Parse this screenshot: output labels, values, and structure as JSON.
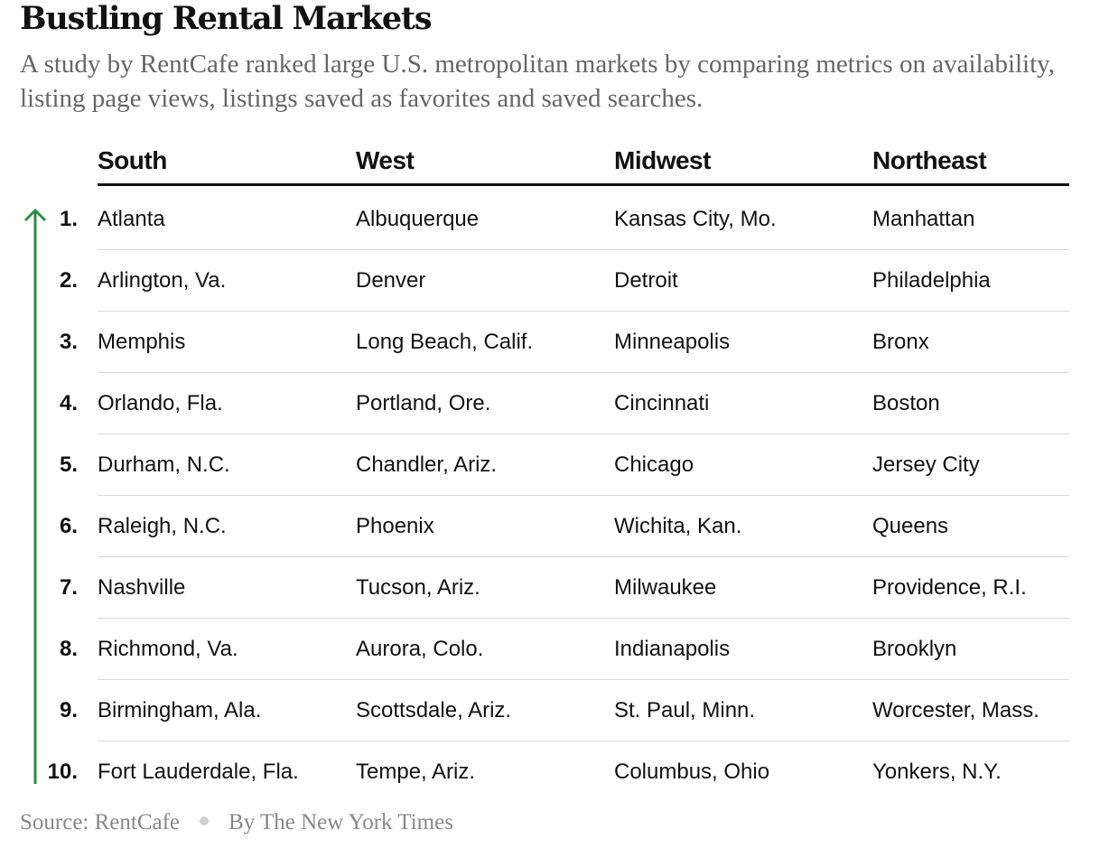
{
  "title": "Bustling Rental Markets",
  "subtitle": "A study by RentCafe ranked large U.S. metropolitan markets by comparing metrics on availability, listing page views, listings saved as favorites and saved searches.",
  "columns": [
    "South",
    "West",
    "Midwest",
    "Northeast"
  ],
  "rows": [
    {
      "rank": "1.",
      "cells": [
        "Atlanta",
        "Albuquerque",
        "Kansas City, Mo.",
        "Manhattan"
      ]
    },
    {
      "rank": "2.",
      "cells": [
        "Arlington, Va.",
        "Denver",
        "Detroit",
        "Philadelphia"
      ]
    },
    {
      "rank": "3.",
      "cells": [
        "Memphis",
        "Long Beach, Calif.",
        "Minneapolis",
        "Bronx"
      ]
    },
    {
      "rank": "4.",
      "cells": [
        "Orlando, Fla.",
        "Portland, Ore.",
        "Cincinnati",
        "Boston"
      ]
    },
    {
      "rank": "5.",
      "cells": [
        "Durham, N.C.",
        "Chandler, Ariz.",
        "Chicago",
        "Jersey City"
      ]
    },
    {
      "rank": "6.",
      "cells": [
        "Raleigh, N.C.",
        "Phoenix",
        "Wichita, Kan.",
        "Queens"
      ]
    },
    {
      "rank": "7.",
      "cells": [
        "Nashville",
        "Tucson, Ariz.",
        "Milwaukee",
        "Providence, R.I."
      ]
    },
    {
      "rank": "8.",
      "cells": [
        "Richmond, Va.",
        "Aurora, Colo.",
        "Indianapolis",
        "Brooklyn"
      ]
    },
    {
      "rank": "9.",
      "cells": [
        "Birmingham, Ala.",
        "Scottsdale, Ariz.",
        "St. Paul, Minn.",
        "Worcester, Mass."
      ]
    },
    {
      "rank": "10.",
      "cells": [
        "Fort Lauderdale, Fla.",
        "Tempe, Ariz.",
        "Columbus, Ohio",
        "Yonkers, N.Y."
      ]
    }
  ],
  "footer": {
    "source": "Source: RentCafe",
    "credit": "By The New York Times"
  },
  "colors": {
    "arrow": "#2e8b45",
    "text": "#121212",
    "muted": "#888888"
  },
  "icons": {
    "rank_arrow": "arrow-up-icon",
    "footer_separator": "dot-separator-icon"
  }
}
